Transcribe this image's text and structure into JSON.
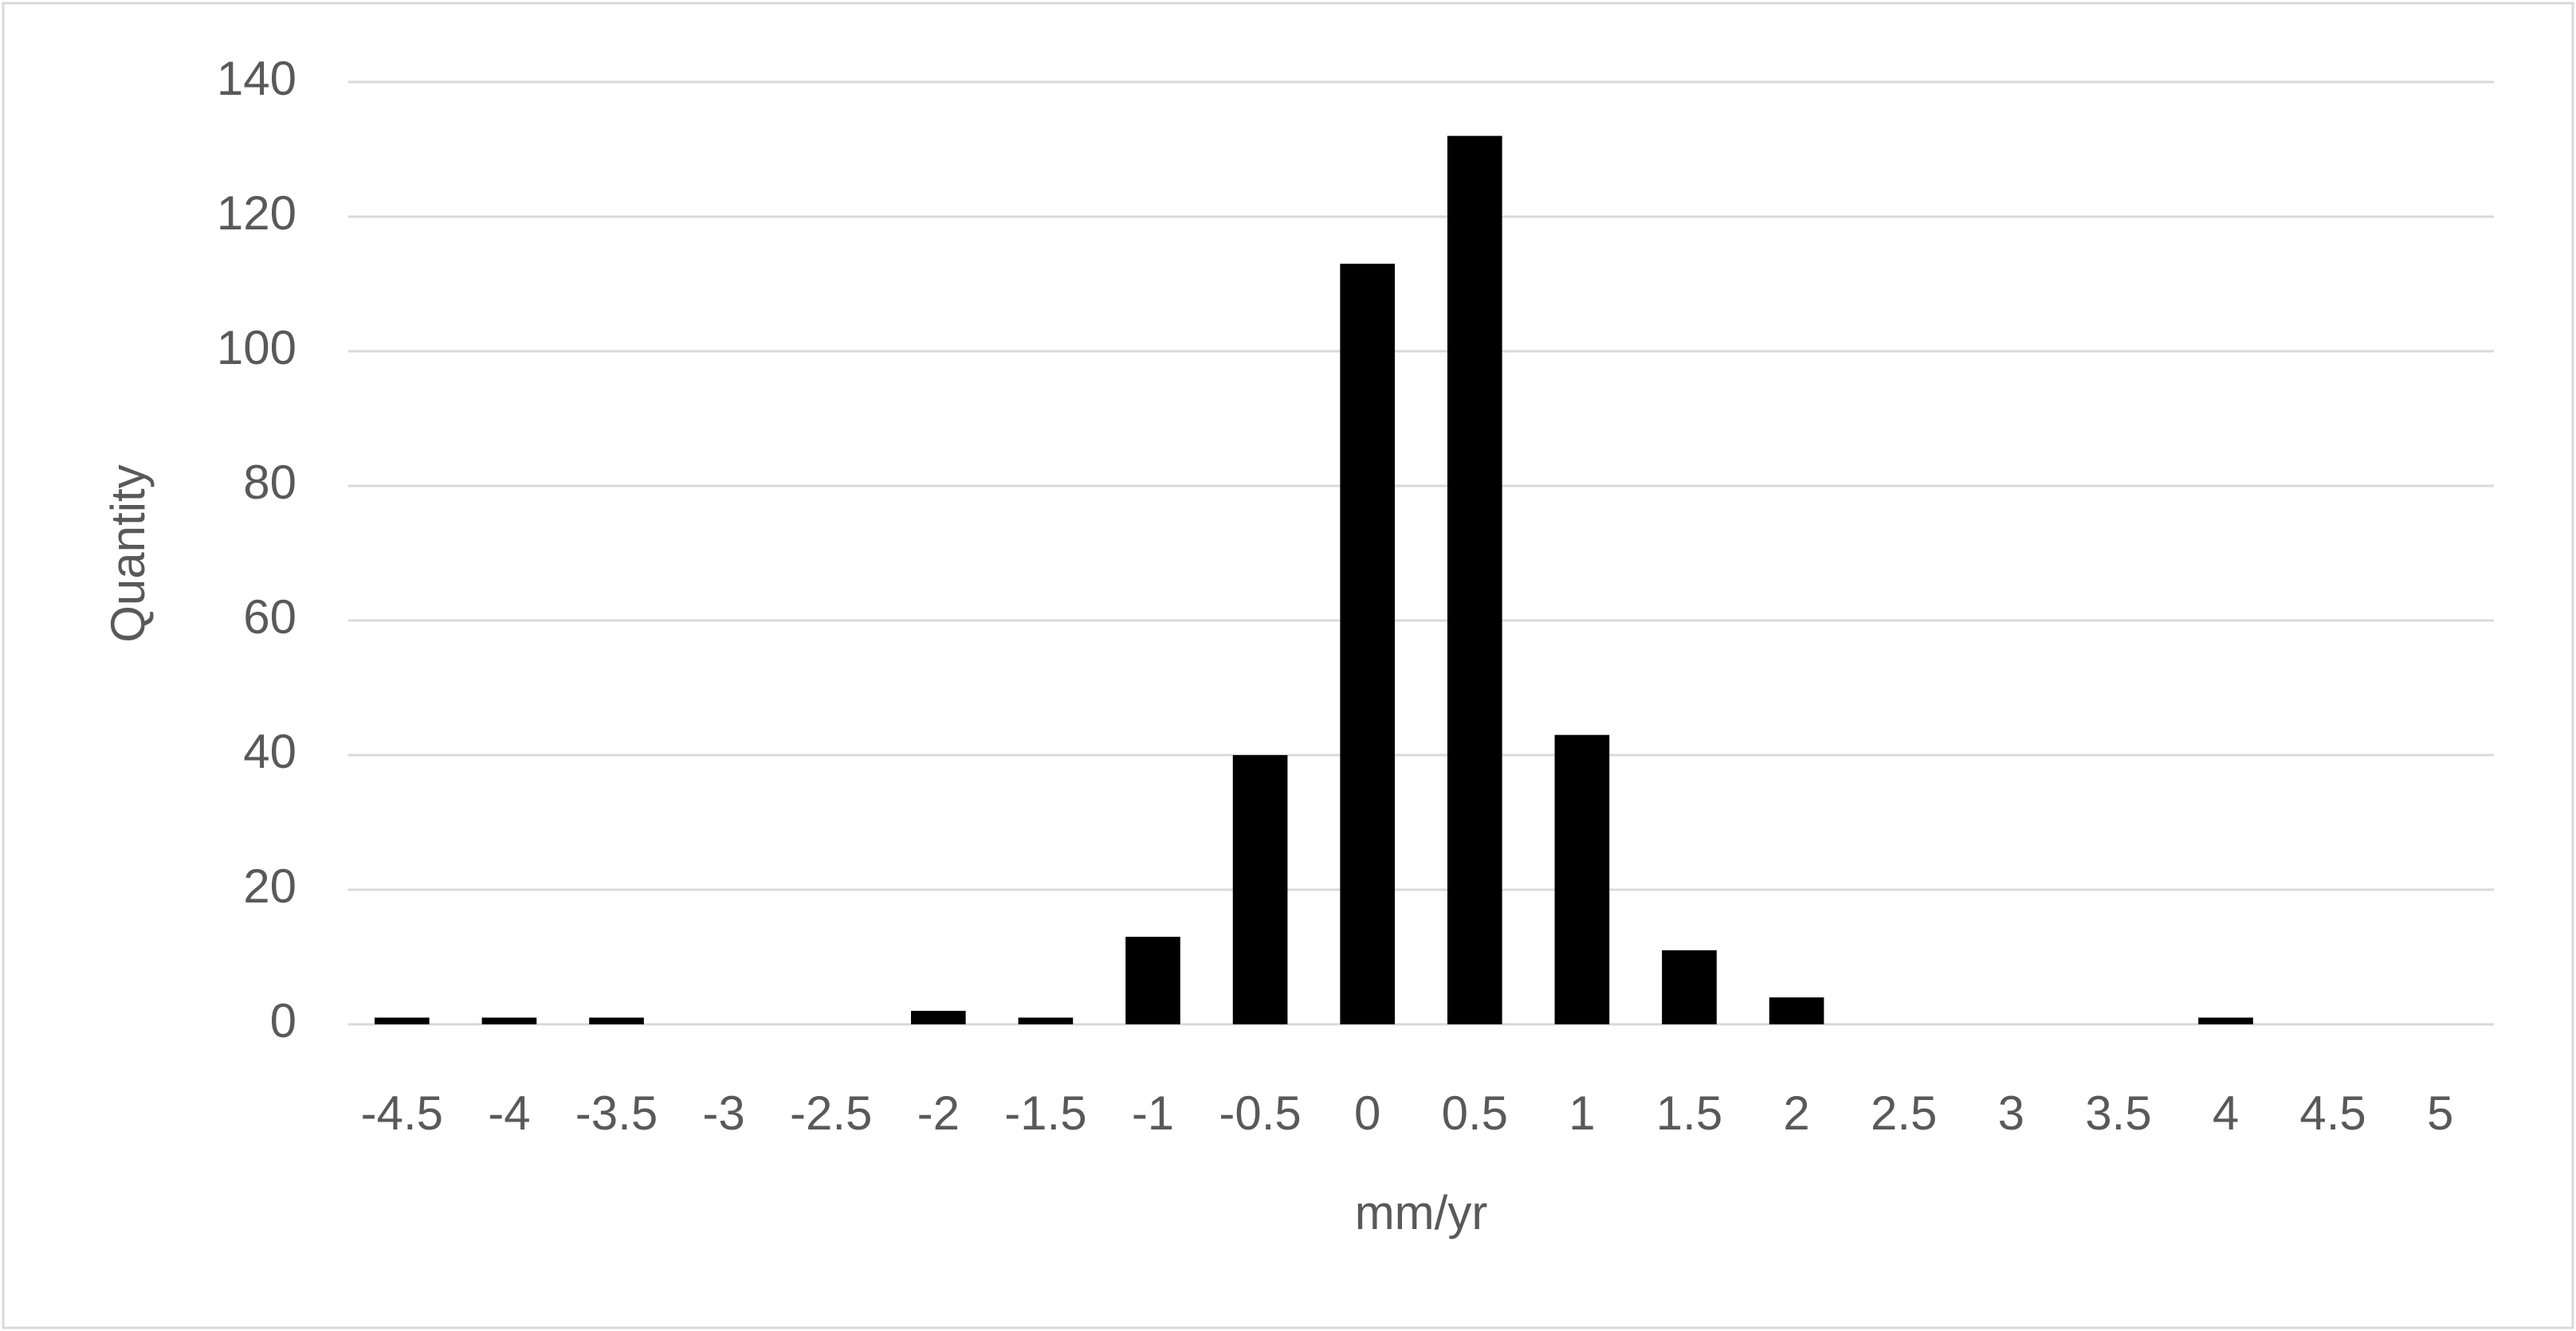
{
  "chart_data": {
    "type": "bar",
    "x_label": "mm/yr",
    "y_label": "Quantity",
    "categories": [
      "-4.5",
      "-4",
      "-3.5",
      "-3",
      "-2.5",
      "-2",
      "-1.5",
      "-1",
      "-0.5",
      "0",
      "0.5",
      "1",
      "1.5",
      "2",
      "2.5",
      "3",
      "3.5",
      "4",
      "4.5",
      "5"
    ],
    "values": [
      1,
      1,
      1,
      0,
      0,
      2,
      1,
      13,
      40,
      113,
      132,
      43,
      11,
      4,
      0,
      0,
      0,
      1,
      0,
      0
    ],
    "color": "#000000",
    "ylim": [
      0,
      140
    ],
    "yticks": [
      0,
      20,
      40,
      60,
      80,
      100,
      120,
      140
    ],
    "grid": true
  }
}
